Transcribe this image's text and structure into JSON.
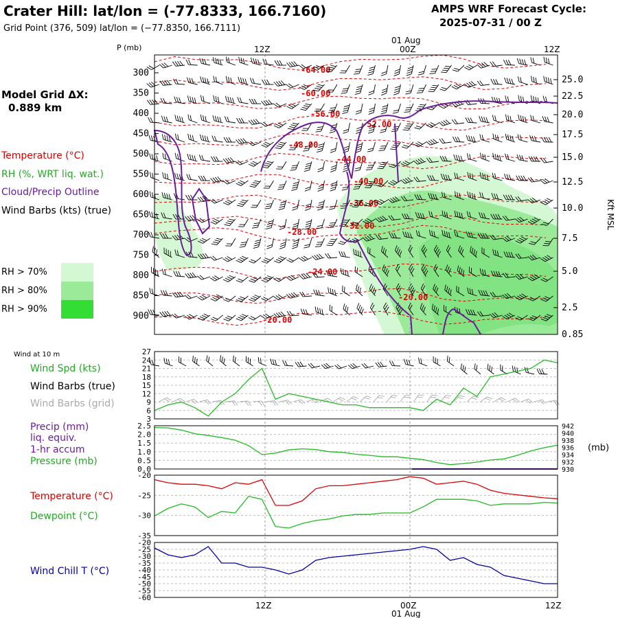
{
  "header": {
    "title": "Crater Hill:  lat/lon = (-77.8333, 166.7160)",
    "subtitle": "Grid Point (376, 509) lat/lon = (−77.8350, 166.7111)",
    "cycle_line1": "AMPS WRF Forecast Cycle:",
    "cycle_line2": "2025-07-31 / 00  Z"
  },
  "model_grid": {
    "label": "Model Grid ΔX:",
    "value": "0.889 km"
  },
  "sounding_legend": {
    "temperature": "Temperature (°C)",
    "rh": "RH (%, WRT liq. wat.)",
    "cloud": "Cloud/Precip Outline",
    "wind": "Wind Barbs (kts) (true)"
  },
  "rh_legend": [
    {
      "label": "RH > 70%",
      "color": "#d4f8d4"
    },
    {
      "label": "RH > 80%",
      "color": "#9aea9a"
    },
    {
      "label": "RH > 90%",
      "color": "#33dd33"
    }
  ],
  "colors": {
    "temperature": "#dd0000",
    "green": "#22bb22",
    "purple": "#6a1b9a",
    "blue": "#0000aa",
    "grey": "#aaaaaa"
  },
  "chart_data": [
    {
      "id": "sounding",
      "type": "heatmap",
      "y_axis_label": "P (mb)",
      "right_axis_label": "Kft MSL",
      "pressure_ticks": [
        "300",
        "350",
        "400",
        "450",
        "500",
        "550",
        "600",
        "650",
        "700",
        "750",
        "800",
        "850",
        "900"
      ],
      "height_ticks": [
        "25.0",
        "22.5",
        "20.0",
        "17.5",
        "15.0",
        "12.5",
        "10.0",
        "7.5",
        "5.0",
        "2.5",
        "0.85"
      ],
      "time_labels_top": [
        "12Z",
        "00Z",
        "12Z"
      ],
      "date_label_top": "01 Aug",
      "isotherm_labels": [
        "-64.00",
        "-60.00",
        "-56.00",
        "-52.00",
        "-48.00",
        "-44.00",
        "-40.00",
        "-36.00",
        "-32.00",
        "-28.00",
        "-24.00",
        "-20.00",
        "-20.00"
      ]
    },
    {
      "id": "wind",
      "type": "line",
      "header": "Wind at 10 m",
      "labels": {
        "speed": "Wind Spd (kts)",
        "barbs_true": "Wind Barbs (true)",
        "barbs_grid": "Wind Barbs (grid)"
      },
      "y_ticks": [
        "27",
        "24",
        "21",
        "18",
        "15",
        "12",
        "9",
        "6",
        "3"
      ],
      "ylim": [
        3,
        27
      ],
      "series": [
        {
          "name": "Wind Spd (kts)",
          "values": [
            6,
            8,
            9,
            7,
            4,
            9,
            12,
            17,
            21,
            10,
            12,
            11,
            10,
            9,
            8,
            8,
            7,
            7,
            7,
            7,
            6,
            10,
            8,
            14,
            11,
            18,
            19,
            20,
            21,
            24,
            23
          ]
        }
      ]
    },
    {
      "id": "precip",
      "type": "line",
      "labels": {
        "precip": "Precip (mm)",
        "liq": "liq. equiv.",
        "accum": "1-hr accum",
        "pressure": "Pressure (mb)"
      },
      "left_ticks": [
        "2.5",
        "2.0",
        "1.5",
        "1.0",
        "0.5",
        "0.0"
      ],
      "right_ticks": [
        "942",
        "940",
        "938",
        "936",
        "934",
        "932",
        "930"
      ],
      "right_unit": "(mb)",
      "ylim_left": [
        0,
        2.5
      ],
      "ylim_right": [
        930,
        942
      ],
      "series": [
        {
          "name": "Pressure (mb)",
          "values": [
            941.5,
            941.4,
            940.8,
            939.8,
            939.3,
            938.7,
            938.0,
            936.5,
            934.0,
            934.4,
            935.3,
            935.6,
            935.4,
            934.8,
            934.6,
            934.1,
            933.8,
            933.4,
            933.4,
            933.0,
            932.6,
            931.8,
            931.2,
            931.5,
            931.9,
            932.5,
            932.8,
            933.8,
            935.0,
            935.9,
            936.6
          ]
        }
      ]
    },
    {
      "id": "temperature",
      "type": "line",
      "labels": {
        "temperature": "Temperature (°C)",
        "dewpoint": "Dewpoint (°C)"
      },
      "y_ticks": [
        "-20",
        "-25",
        "-30",
        "-35"
      ],
      "ylim": [
        -35,
        -15
      ],
      "series": [
        {
          "name": "Temperature (°C)",
          "values": [
            -16.5,
            -17.5,
            -18.0,
            -18.0,
            -18.5,
            -19.5,
            -17.5,
            -18.0,
            -16.5,
            -25.0,
            -25.0,
            -23.5,
            -19.5,
            -18.5,
            -18.5,
            -18.0,
            -17.5,
            -17.0,
            -16.5,
            -15.5,
            -16.0,
            -18.0,
            -17.5,
            -17.0,
            -18.0,
            -20.0,
            -21.0,
            -21.5,
            -22.0,
            -22.5,
            -22.8
          ]
        },
        {
          "name": "Dewpoint (°C)",
          "values": [
            -28.5,
            -26.0,
            -24.5,
            -25.5,
            -29.0,
            -27.0,
            -27.5,
            -22.0,
            -23.0,
            -32.0,
            -32.5,
            -31.0,
            -30.0,
            -29.5,
            -28.5,
            -28.0,
            -28.0,
            -27.5,
            -27.5,
            -27.5,
            -25.5,
            -23.0,
            -23.0,
            -23.0,
            -23.5,
            -25.0,
            -24.5,
            -24.5,
            -24.5,
            -24.0,
            -24.2
          ]
        }
      ]
    },
    {
      "id": "windchill",
      "type": "line",
      "labels": {
        "windchill": "Wind Chill T (°C)"
      },
      "y_ticks": [
        "-20",
        "-25",
        "-30",
        "-35",
        "-40",
        "-45",
        "-50",
        "-55",
        "-60"
      ],
      "ylim": [
        -60,
        -20
      ],
      "series": [
        {
          "name": "Wind Chill T (°C)",
          "values": [
            -24,
            -29,
            -31,
            -29,
            -23,
            -35,
            -35,
            -38,
            -38,
            -40,
            -43,
            -40,
            -33,
            -31,
            -30,
            -29,
            -28,
            -27,
            -26,
            -25,
            -23,
            -25,
            -33,
            -31,
            -36,
            -38,
            -44,
            -46,
            -48,
            -50,
            -50
          ]
        }
      ]
    }
  ],
  "bottom_axis": {
    "time_labels": [
      "12Z",
      "00Z",
      "12Z"
    ],
    "date_label": "01 Aug"
  }
}
